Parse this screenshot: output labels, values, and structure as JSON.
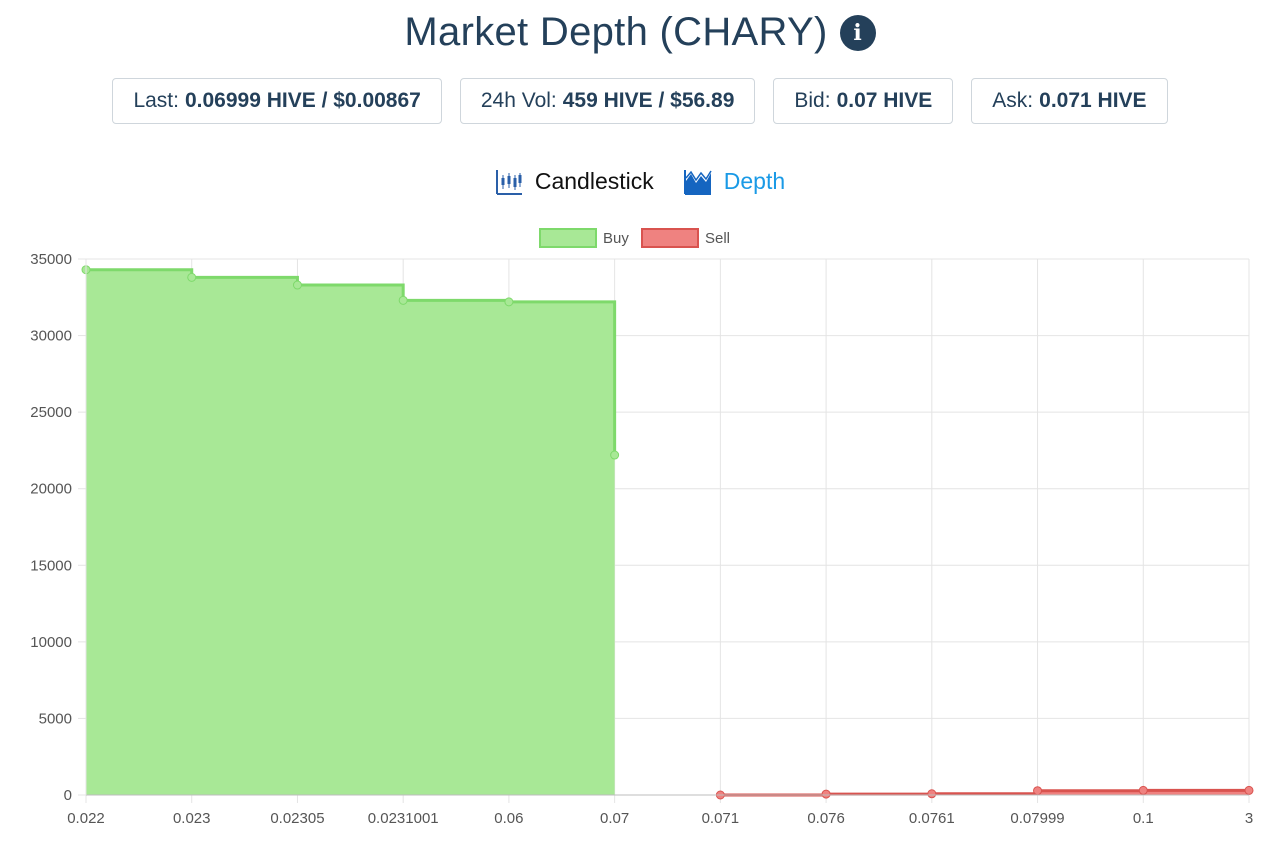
{
  "title": "Market Depth (CHARY)",
  "info_icon": "info-circle-icon",
  "stats": [
    {
      "label": "Last:",
      "value": "0.06999 HIVE / $0.00867"
    },
    {
      "label": "24h Vol:",
      "value": "459 HIVE / $56.89"
    },
    {
      "label": "Bid:",
      "value": "0.07 HIVE"
    },
    {
      "label": "Ask:",
      "value": "0.071 HIVE"
    }
  ],
  "tabs": [
    {
      "label": "Candlestick",
      "icon": "candlestick-icon",
      "active": false
    },
    {
      "label": "Depth",
      "icon": "depth-chart-icon",
      "active": true
    }
  ],
  "chart_data": {
    "type": "area",
    "categories": [
      "0.022",
      "0.023",
      "0.02305",
      "0.0231001",
      "0.06",
      "0.07",
      "0.071",
      "0.076",
      "0.0761",
      "0.07999",
      "0.1",
      "3"
    ],
    "series": [
      {
        "name": "Buy",
        "color": "#7ed96b",
        "fill": "#a8e896",
        "values": [
          34300,
          33800,
          33300,
          32300,
          32200,
          22200,
          null,
          null,
          null,
          null,
          null,
          null
        ]
      },
      {
        "name": "Sell",
        "color": "#d9534f",
        "fill": "#ef8280",
        "values": [
          null,
          null,
          null,
          null,
          null,
          null,
          0,
          60,
          80,
          280,
          300,
          300
        ]
      }
    ],
    "ylim": [
      0,
      35000
    ],
    "yticks": [
      "0",
      "5000",
      "10000",
      "15000",
      "20000",
      "25000",
      "30000",
      "35000"
    ],
    "legend_position": "top-center",
    "grid": true
  }
}
